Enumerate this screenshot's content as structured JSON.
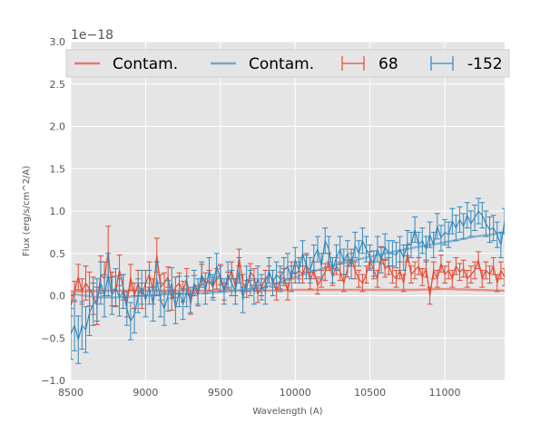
{
  "chart_data": {
    "type": "line",
    "xlabel": "Wavelength (A)",
    "ylabel": "Flux (erg/s/cm^2/A)",
    "y_offset_text": "1e−18",
    "xlim": [
      8500,
      11400
    ],
    "ylim": [
      -1.0,
      3.0
    ],
    "x_ticks": [
      8500,
      9000,
      9500,
      10000,
      10500,
      11000
    ],
    "x_tick_labels": [
      "8500",
      "9000",
      "9500",
      "10000",
      "10500",
      "11000"
    ],
    "y_ticks": [
      -1.0,
      -0.5,
      0.0,
      0.5,
      1.0,
      1.5,
      2.0,
      2.5,
      3.0
    ],
    "y_tick_labels": [
      "−1.0",
      "−0.5",
      "0.0",
      "0.5",
      "1.0",
      "1.5",
      "2.0",
      "2.5",
      "3.0"
    ],
    "grid": true,
    "legend_position": "top",
    "legend": [
      {
        "label": "Contam.",
        "style": "line",
        "color": "#e8796a"
      },
      {
        "label": "Contam.",
        "style": "line",
        "color": "#72a7cf"
      },
      {
        "label": "68",
        "style": "errorbar",
        "color": "#e24a33"
      },
      {
        "label": "-152",
        "style": "errorbar",
        "color": "#348abd"
      }
    ],
    "series": [
      {
        "id": "contam-68",
        "kind": "line",
        "color": "#e8796a",
        "x": [
          8500,
          8600,
          8700,
          8800,
          9000,
          9200,
          9400,
          9600,
          9800,
          10000,
          10200,
          10400,
          10600,
          10800,
          11000,
          11200,
          11400
        ],
        "y": [
          0.05,
          0.05,
          0.06,
          0.06,
          0.06,
          0.06,
          0.06,
          0.06,
          0.06,
          0.07,
          0.07,
          0.07,
          0.07,
          0.07,
          0.08,
          0.07,
          0.06
        ]
      },
      {
        "id": "contam-152",
        "kind": "line",
        "color": "#72a7cf",
        "x": [
          8500,
          8600,
          8700,
          8800,
          9000,
          9200,
          9400,
          9600,
          9800,
          10000,
          10200,
          10400,
          10600,
          10800,
          11000,
          11200,
          11300,
          11400
        ],
        "y": [
          0.02,
          0.0,
          -0.02,
          -0.02,
          0.0,
          0.02,
          0.03,
          0.06,
          0.1,
          0.22,
          0.33,
          0.42,
          0.5,
          0.57,
          0.63,
          0.7,
          0.72,
          0.75
        ]
      },
      {
        "id": "obj-68",
        "kind": "errorbar",
        "color": "#e24a33",
        "x": [
          8500,
          8525,
          8550,
          8575,
          8600,
          8625,
          8650,
          8675,
          8700,
          8725,
          8750,
          8775,
          8800,
          8825,
          8850,
          8875,
          8900,
          8925,
          8950,
          8975,
          9000,
          9025,
          9050,
          9075,
          9100,
          9125,
          9150,
          9175,
          9200,
          9225,
          9250,
          9275,
          9300,
          9325,
          9350,
          9375,
          9400,
          9425,
          9450,
          9475,
          9500,
          9525,
          9550,
          9575,
          9600,
          9625,
          9650,
          9675,
          9700,
          9725,
          9750,
          9775,
          9800,
          9825,
          9850,
          9875,
          9900,
          9925,
          9950,
          9975,
          10000,
          10025,
          10050,
          10075,
          10100,
          10125,
          10150,
          10175,
          10200,
          10225,
          10250,
          10275,
          10300,
          10325,
          10350,
          10375,
          10400,
          10425,
          10450,
          10475,
          10500,
          10525,
          10550,
          10575,
          10600,
          10625,
          10650,
          10675,
          10700,
          10725,
          10750,
          10775,
          10800,
          10825,
          10850,
          10875,
          10900,
          10925,
          10950,
          10975,
          11000,
          11025,
          11050,
          11075,
          11100,
          11125,
          11150,
          11175,
          11200,
          11225,
          11250,
          11275,
          11300,
          11325,
          11350,
          11375,
          11400
        ],
        "y": [
          -0.12,
          0.05,
          0.22,
          0.05,
          0.15,
          0.08,
          0.0,
          -0.12,
          0.25,
          0.2,
          0.52,
          0.08,
          0.05,
          0.3,
          0.1,
          -0.1,
          0.22,
          0.0,
          0.15,
          0.0,
          0.15,
          0.25,
          0.05,
          0.48,
          0.1,
          0.15,
          0.22,
          -0.05,
          0.1,
          0.15,
          0.05,
          0.2,
          -0.1,
          0.12,
          0.0,
          0.25,
          0.15,
          0.18,
          0.1,
          0.2,
          0.25,
          0.05,
          0.18,
          0.3,
          0.1,
          0.45,
          0.15,
          0.08,
          0.28,
          0.22,
          0.02,
          0.1,
          0.2,
          0.25,
          0.2,
          0.05,
          0.18,
          0.22,
          0.05,
          0.3,
          0.25,
          0.3,
          0.25,
          0.38,
          0.18,
          0.3,
          0.12,
          0.2,
          0.28,
          0.4,
          0.22,
          0.35,
          0.28,
          0.15,
          0.32,
          0.45,
          0.3,
          0.2,
          0.15,
          0.25,
          0.42,
          0.3,
          0.2,
          0.48,
          0.32,
          0.35,
          0.25,
          0.2,
          0.3,
          0.15,
          0.5,
          0.25,
          0.3,
          0.35,
          0.22,
          0.32,
          0.0,
          0.3,
          0.2,
          0.38,
          0.25,
          0.3,
          0.2,
          0.35,
          0.28,
          0.32,
          0.2,
          0.25,
          0.3,
          0.42,
          0.2,
          0.3,
          0.25,
          0.35,
          0.15,
          0.3,
          0.22
        ],
        "err": [
          0.12,
          0.12,
          0.15,
          0.15,
          0.2,
          0.2,
          0.22,
          0.22,
          0.22,
          0.2,
          0.3,
          0.2,
          0.18,
          0.18,
          0.15,
          0.15,
          0.15,
          0.15,
          0.15,
          0.15,
          0.15,
          0.15,
          0.15,
          0.2,
          0.15,
          0.12,
          0.12,
          0.12,
          0.12,
          0.12,
          0.12,
          0.12,
          0.12,
          0.12,
          0.12,
          0.12,
          0.12,
          0.12,
          0.12,
          0.12,
          0.12,
          0.1,
          0.1,
          0.1,
          0.1,
          0.1,
          0.1,
          0.1,
          0.1,
          0.1,
          0.1,
          0.1,
          0.1,
          0.1,
          0.1,
          0.1,
          0.1,
          0.1,
          0.1,
          0.1,
          0.1,
          0.1,
          0.1,
          0.1,
          0.1,
          0.1,
          0.1,
          0.1,
          0.1,
          0.1,
          0.1,
          0.1,
          0.1,
          0.1,
          0.1,
          0.1,
          0.1,
          0.1,
          0.1,
          0.1,
          0.1,
          0.1,
          0.1,
          0.1,
          0.1,
          0.1,
          0.1,
          0.1,
          0.1,
          0.1,
          0.1,
          0.1,
          0.1,
          0.1,
          0.1,
          0.1,
          0.1,
          0.1,
          0.1,
          0.1,
          0.1,
          0.1,
          0.1,
          0.1,
          0.1,
          0.1,
          0.1,
          0.1,
          0.1,
          0.1,
          0.1,
          0.1,
          0.1,
          0.1,
          0.1,
          0.1,
          0.1
        ]
      },
      {
        "id": "obj-152",
        "kind": "errorbar",
        "color": "#348abd",
        "x": [
          8500,
          8525,
          8550,
          8575,
          8600,
          8625,
          8650,
          8675,
          8700,
          8725,
          8750,
          8775,
          8800,
          8825,
          8850,
          8875,
          8900,
          8925,
          8950,
          8975,
          9000,
          9025,
          9050,
          9075,
          9100,
          9125,
          9150,
          9175,
          9200,
          9225,
          9250,
          9275,
          9300,
          9325,
          9350,
          9375,
          9400,
          9425,
          9450,
          9475,
          9500,
          9525,
          9550,
          9575,
          9600,
          9625,
          9650,
          9675,
          9700,
          9725,
          9750,
          9775,
          9800,
          9825,
          9850,
          9875,
          9900,
          9925,
          9950,
          9975,
          10000,
          10025,
          10050,
          10075,
          10100,
          10125,
          10150,
          10175,
          10200,
          10225,
          10250,
          10275,
          10300,
          10325,
          10350,
          10375,
          10400,
          10425,
          10450,
          10475,
          10500,
          10525,
          10550,
          10575,
          10600,
          10625,
          10650,
          10675,
          10700,
          10725,
          10750,
          10775,
          10800,
          10825,
          10850,
          10875,
          10900,
          10925,
          10950,
          10975,
          11000,
          11025,
          11050,
          11075,
          11100,
          11125,
          11150,
          11175,
          11200,
          11225,
          11250,
          11275,
          11300,
          11325,
          11350,
          11375,
          11400
        ],
        "y": [
          -0.45,
          -0.35,
          -0.52,
          -0.35,
          -0.4,
          -0.2,
          -0.1,
          -0.05,
          0.15,
          0.0,
          0.25,
          0.0,
          0.1,
          -0.02,
          0.05,
          -0.15,
          -0.3,
          -0.22,
          0.0,
          0.1,
          -0.05,
          0.1,
          -0.1,
          0.2,
          -0.05,
          -0.15,
          0.0,
          0.15,
          -0.15,
          0.05,
          -0.1,
          0.05,
          -0.05,
          0.15,
          0.05,
          0.25,
          0.05,
          0.3,
          0.1,
          0.35,
          0.2,
          0.05,
          0.25,
          0.15,
          0.05,
          0.3,
          -0.05,
          0.2,
          0.15,
          0.05,
          0.2,
          0.1,
          0.05,
          0.3,
          0.15,
          0.25,
          0.2,
          0.3,
          0.35,
          0.2,
          0.42,
          0.3,
          0.5,
          0.35,
          0.3,
          0.45,
          0.55,
          0.35,
          0.65,
          0.55,
          0.3,
          0.45,
          0.55,
          0.4,
          0.5,
          0.35,
          0.6,
          0.5,
          0.65,
          0.55,
          0.45,
          0.38,
          0.55,
          0.42,
          0.58,
          0.5,
          0.5,
          0.48,
          0.55,
          0.45,
          0.62,
          0.6,
          0.78,
          0.6,
          0.65,
          0.55,
          0.72,
          0.6,
          0.82,
          0.68,
          0.75,
          0.72,
          0.88,
          0.8,
          0.9,
          0.82,
          0.95,
          0.85,
          0.92,
          1.0,
          0.95,
          0.85,
          0.78,
          0.8,
          0.72,
          0.6,
          0.88
        ],
        "err": [
          0.3,
          0.3,
          0.28,
          0.28,
          0.27,
          0.27,
          0.25,
          0.25,
          0.25,
          0.25,
          0.25,
          0.22,
          0.22,
          0.22,
          0.2,
          0.2,
          0.22,
          0.22,
          0.2,
          0.2,
          0.2,
          0.2,
          0.2,
          0.2,
          0.2,
          0.2,
          0.18,
          0.18,
          0.18,
          0.18,
          0.18,
          0.18,
          0.15,
          0.15,
          0.15,
          0.15,
          0.15,
          0.15,
          0.15,
          0.15,
          0.15,
          0.15,
          0.15,
          0.15,
          0.15,
          0.15,
          0.15,
          0.15,
          0.15,
          0.15,
          0.15,
          0.15,
          0.15,
          0.15,
          0.15,
          0.15,
          0.15,
          0.15,
          0.15,
          0.15,
          0.15,
          0.15,
          0.15,
          0.15,
          0.15,
          0.15,
          0.15,
          0.15,
          0.15,
          0.15,
          0.15,
          0.15,
          0.15,
          0.15,
          0.15,
          0.15,
          0.15,
          0.15,
          0.15,
          0.15,
          0.15,
          0.15,
          0.15,
          0.15,
          0.15,
          0.15,
          0.15,
          0.15,
          0.15,
          0.15,
          0.15,
          0.15,
          0.15,
          0.15,
          0.15,
          0.15,
          0.15,
          0.15,
          0.15,
          0.15,
          0.15,
          0.15,
          0.15,
          0.15,
          0.15,
          0.15,
          0.15,
          0.15,
          0.15,
          0.15,
          0.15,
          0.15,
          0.15,
          0.15,
          0.15,
          0.15,
          0.15
        ]
      }
    ]
  }
}
